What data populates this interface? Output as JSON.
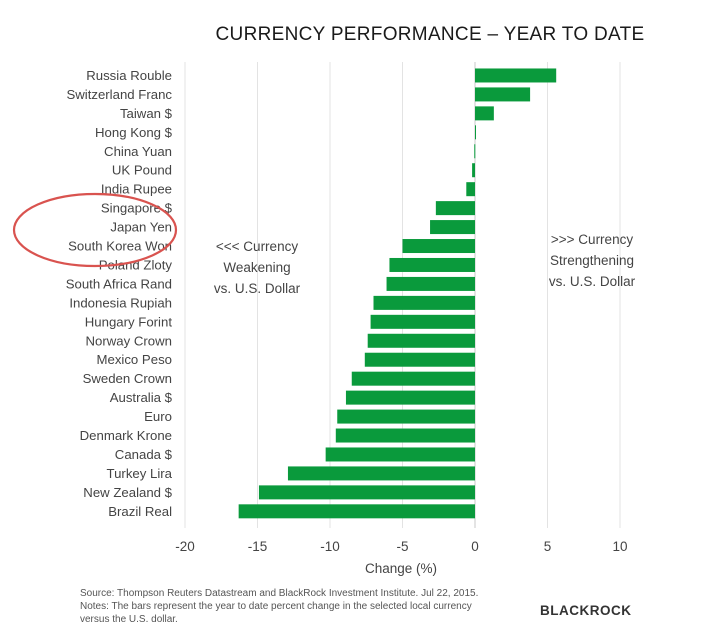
{
  "chart_data": {
    "type": "bar",
    "orientation": "horizontal",
    "title": "CURRENCY PERFORMANCE – YEAR TO DATE",
    "xlabel": "Change (%)",
    "xlim": [
      -20,
      10
    ],
    "xticks": [
      -20,
      -15,
      -10,
      -5,
      0,
      5,
      10
    ],
    "grid": "vertical",
    "bar_color": "#0a9a3c",
    "categories": [
      "Russia Rouble",
      "Switzerland Franc",
      "Taiwan $",
      "Hong Kong $",
      "China Yuan",
      "UK Pound",
      "India Rupee",
      "Singapore $",
      "Japan Yen",
      "South Korea Won",
      "Poland Zloty",
      "South Africa Rand",
      "Indonesia Rupiah",
      "Hungary Forint",
      "Norway Crown",
      "Mexico Peso",
      "Sweden Crown",
      "Australia $",
      "Euro",
      "Denmark Krone",
      "Canada $",
      "Turkey Lira",
      "New Zealand $",
      "Brazil Real"
    ],
    "values": [
      5.6,
      3.8,
      1.3,
      0.05,
      -0.05,
      -0.2,
      -0.6,
      -2.7,
      -3.1,
      -5.0,
      -5.9,
      -6.1,
      -7.0,
      -7.2,
      -7.4,
      -7.6,
      -8.5,
      -8.9,
      -9.5,
      -9.6,
      -10.3,
      -12.9,
      -14.9,
      -16.3
    ]
  },
  "annotations": {
    "weakening": [
      "<<< Currency",
      "Weakening",
      "vs. U.S. Dollar"
    ],
    "strengthening": [
      ">>> Currency",
      "Strengthening",
      "vs. U.S. Dollar"
    ]
  },
  "footer": {
    "source": "Source: Thompson Reuters Datastream and BlackRock Investment Institute. Jul 22, 2015.",
    "notes_line1": "Notes: The bars represent the year to date percent change in the selected local currency",
    "notes_line2": "versus the U.S. dollar.",
    "brand": "BLACKROCK"
  },
  "highlight": {
    "shape": "circle",
    "color": "#d9534f",
    "categories": [
      "Japan Yen",
      "South Korea Won"
    ]
  }
}
